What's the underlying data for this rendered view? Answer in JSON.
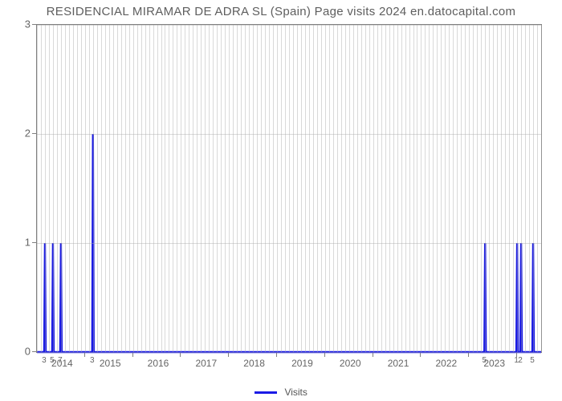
{
  "chart": {
    "type": "line",
    "title": "RESIDENCIAL MIRAMAR DE ADRA SL (Spain) Page visits 2024 en.datocapital.com",
    "title_color": "#5e5e5e",
    "title_fontsize": 15,
    "background_color": "#ffffff",
    "plot_border_color": "#808080",
    "grid_color": "rgba(170,170,170,0.45)",
    "line_color": "#1a1ae6",
    "line_width": 2.4,
    "x_range_months": {
      "min": 0,
      "max": 126
    },
    "ylim": [
      0,
      3
    ],
    "yticks": [
      0,
      1,
      2,
      3
    ],
    "year_labels": [
      {
        "year": "2014",
        "month_index": 6.5
      },
      {
        "year": "2015",
        "month_index": 18.5
      },
      {
        "year": "2016",
        "month_index": 30.5
      },
      {
        "year": "2017",
        "month_index": 42.5
      },
      {
        "year": "2018",
        "month_index": 54.5
      },
      {
        "year": "2019",
        "month_index": 66.5
      },
      {
        "year": "2020",
        "month_index": 78.5
      },
      {
        "year": "2021",
        "month_index": 90.5
      },
      {
        "year": "2022",
        "month_index": 102.5
      },
      {
        "year": "2023",
        "month_index": 114.5
      }
    ],
    "small_labels": [
      {
        "text": "3",
        "month_index": 2
      },
      {
        "text": "5",
        "month_index": 4
      },
      {
        "text": "7",
        "month_index": 6
      },
      {
        "text": "3",
        "month_index": 14
      },
      {
        "text": "5",
        "month_index": 112
      },
      {
        "text": "1",
        "month_index": 120
      },
      {
        "text": "2",
        "month_index": 121
      },
      {
        "text": "5",
        "month_index": 124
      }
    ],
    "grid_months": [
      0,
      1,
      2,
      3,
      4,
      5,
      6,
      7,
      8,
      9,
      10,
      11,
      12,
      13,
      14,
      15,
      16,
      17,
      18,
      19,
      20,
      21,
      22,
      23,
      24,
      25,
      26,
      27,
      28,
      29,
      30,
      31,
      32,
      33,
      34,
      35,
      36,
      37,
      38,
      39,
      40,
      41,
      42,
      43,
      44,
      45,
      46,
      47,
      48,
      49,
      50,
      51,
      52,
      53,
      54,
      55,
      56,
      57,
      58,
      59,
      60,
      61,
      62,
      63,
      64,
      65,
      66,
      67,
      68,
      69,
      70,
      71,
      72,
      73,
      74,
      75,
      76,
      77,
      78,
      79,
      80,
      81,
      82,
      83,
      84,
      85,
      86,
      87,
      88,
      89,
      90,
      91,
      92,
      93,
      94,
      95,
      96,
      97,
      98,
      99,
      100,
      101,
      102,
      103,
      104,
      105,
      106,
      107,
      108,
      109,
      110,
      111,
      112,
      113,
      114,
      115,
      116,
      117,
      118,
      119,
      120,
      121,
      122,
      123,
      124,
      125,
      126
    ],
    "major_grid_months": [
      12,
      24,
      36,
      48,
      60,
      72,
      84,
      96,
      108,
      120
    ],
    "series": {
      "name": "Visits",
      "points": [
        [
          0,
          0
        ],
        [
          1.8,
          0
        ],
        [
          2,
          1
        ],
        [
          2.2,
          0
        ],
        [
          3.8,
          0
        ],
        [
          4,
          1
        ],
        [
          4.2,
          0
        ],
        [
          5.8,
          0
        ],
        [
          6,
          1
        ],
        [
          6.2,
          0
        ],
        [
          13.8,
          0
        ],
        [
          14,
          2
        ],
        [
          14.2,
          0
        ],
        [
          111.8,
          0
        ],
        [
          112,
          1
        ],
        [
          112.2,
          0
        ],
        [
          119.8,
          0
        ],
        [
          120,
          1
        ],
        [
          120.2,
          0
        ],
        [
          120.8,
          0
        ],
        [
          121,
          1
        ],
        [
          121.2,
          0
        ],
        [
          123.8,
          0
        ],
        [
          124,
          1
        ],
        [
          124.2,
          0
        ],
        [
          126,
          0
        ]
      ]
    },
    "legend": {
      "label": "Visits",
      "color": "#1a1ae6",
      "line_width": 3
    }
  }
}
